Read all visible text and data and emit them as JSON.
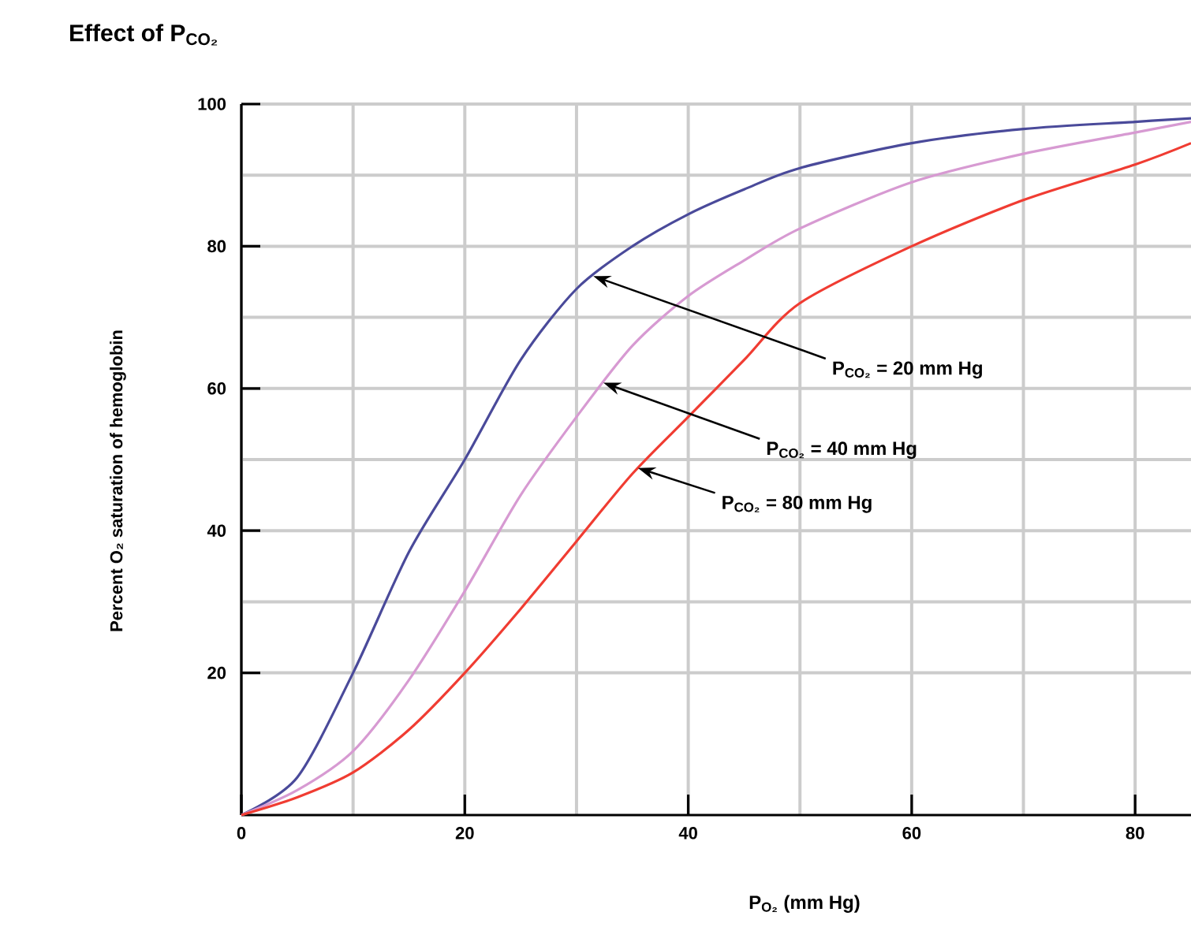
{
  "chart_data": {
    "type": "line",
    "title": "Effect of P$_{CO₂}$",
    "xlabel": "P$_{O₂}$ (mm Hg)",
    "ylabel": "Percent O₂ saturation of hemoglobin",
    "x": [
      0,
      5,
      10,
      15,
      20,
      25,
      30,
      35,
      40,
      45,
      50,
      60,
      70,
      80,
      85
    ],
    "series": [
      {
        "color": "#4a4a9a",
        "values": [
          0,
          5.3,
          20,
          37,
          50,
          64,
          74,
          80,
          84.5,
          88,
          91,
          94.5,
          96.5,
          97.5,
          98
        ]
      },
      {
        "color": "#d79ad2",
        "values": [
          0,
          3.5,
          9,
          19,
          31.5,
          45,
          56,
          66,
          73,
          78,
          82.5,
          89,
          93,
          96,
          97.5
        ]
      },
      {
        "color": "#f03c32",
        "values": [
          0,
          2.5,
          6,
          12,
          20,
          29,
          38.5,
          48,
          56,
          64,
          72,
          80,
          86.5,
          91.5,
          94.5
        ]
      }
    ],
    "annotations": [
      {
        "text": "P$_{CO₂}$ = 20 mm Hg",
        "x": 31.5,
        "y": 75.8
      },
      {
        "text": "P$_{CO₂}$ = 40 mm Hg",
        "x": 32.4,
        "y": 60.8
      },
      {
        "text": "P$_{CO₂}$ = 80 mm Hg",
        "x": 35.5,
        "y": 48.8
      }
    ],
    "xlim": [
      0,
      85
    ],
    "ylim": [
      0,
      100
    ],
    "xticks": [
      0,
      20,
      40,
      60,
      80
    ],
    "yticks": [
      20,
      40,
      60,
      80,
      100
    ],
    "grid": true,
    "marker": "none",
    "line_style": "solid"
  }
}
